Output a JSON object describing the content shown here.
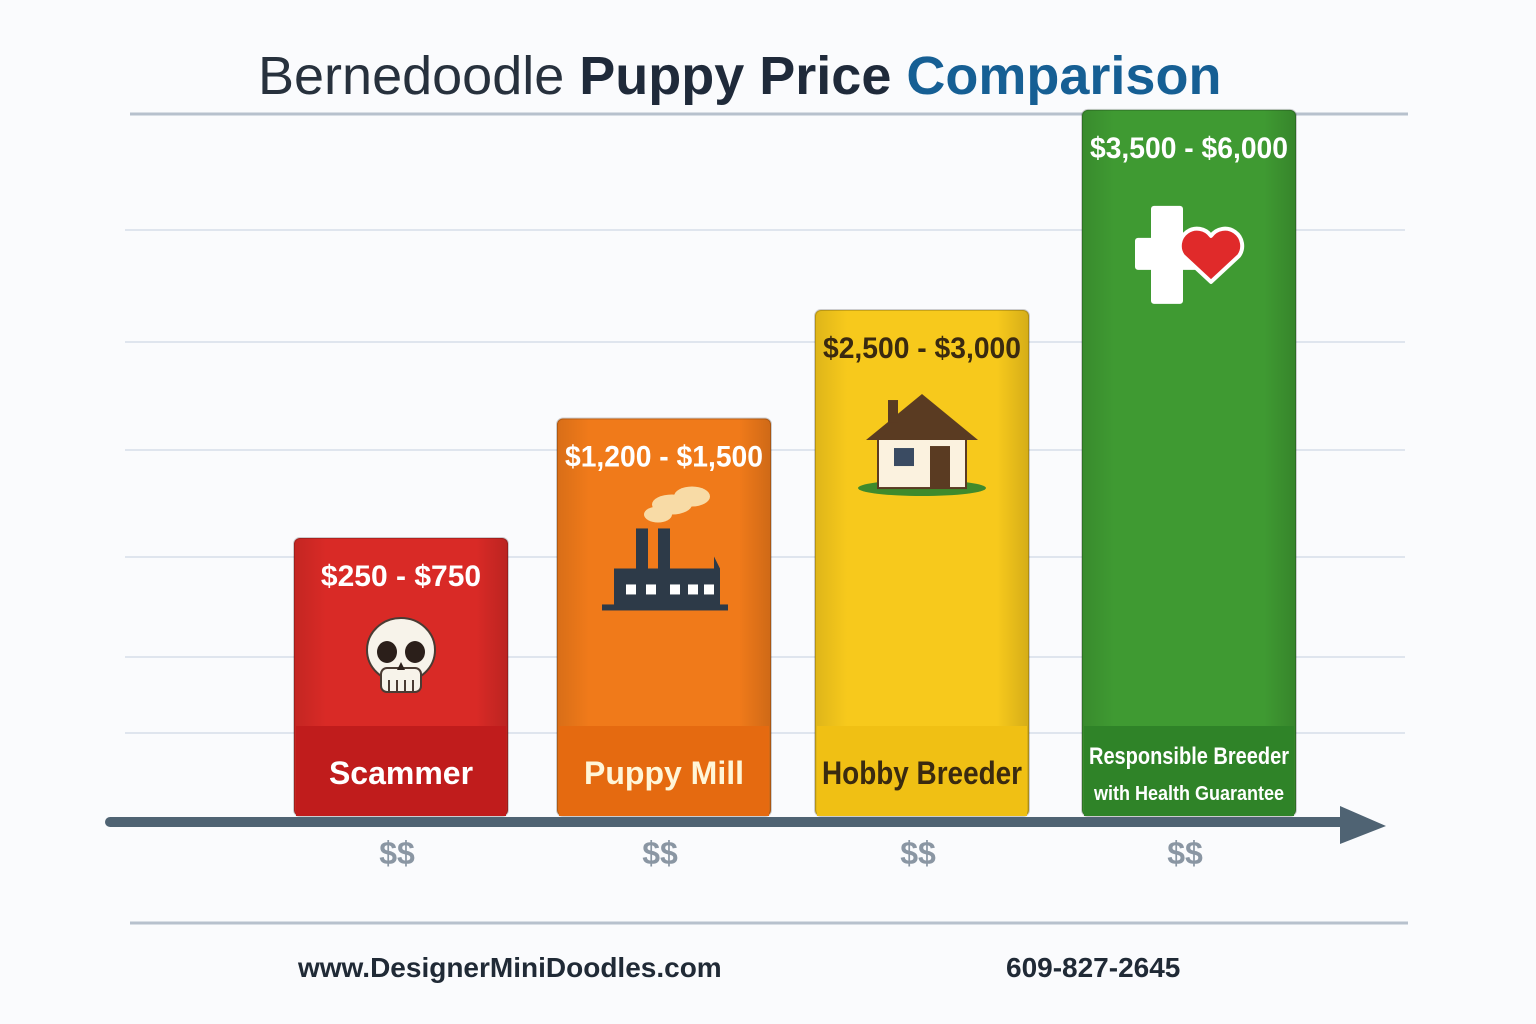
{
  "title": {
    "part1": "Bernedoodle ",
    "part2": "Puppy Price ",
    "part3": "Comparison"
  },
  "chart_data": {
    "type": "bar",
    "categories": [
      "Scammer",
      "Puppy Mill",
      "Hobby Breeder",
      "Responsible Breeder"
    ],
    "category_sublabels": [
      "",
      "",
      "",
      "with Health Guarantee"
    ],
    "value_labels": [
      "$250 - $750",
      "$1,200 - $1,500",
      "$2,500 - $3,000",
      "$3,500 - $6,000"
    ],
    "tick_labels": [
      "$$",
      "$$",
      "$$",
      "$$"
    ],
    "relative_heights": [
      1,
      1.43,
      1.82,
      2.54
    ],
    "colors": [
      "#d92a26",
      "#f07a1a",
      "#f7c91c",
      "#3f9a32"
    ],
    "label_band_colors": [
      "#c01c1c",
      "#e56a10",
      "#f0c014",
      "#2f8328"
    ],
    "value_label_colors": [
      "#ffffff",
      "#ffffff",
      "#3a2a10",
      "#ffffff"
    ],
    "category_label_colors": [
      "#ffffff",
      "#fff6d8",
      "#3a2a10",
      "#ffffff"
    ],
    "icons": [
      "skull-icon",
      "factory-icon",
      "house-icon",
      "health-heart-icon"
    ],
    "grid": true,
    "ylabel": "",
    "xlabel": ""
  },
  "footer": {
    "website": "www.DesignerMiniDoodles.com",
    "phone": "609-827-2645"
  }
}
